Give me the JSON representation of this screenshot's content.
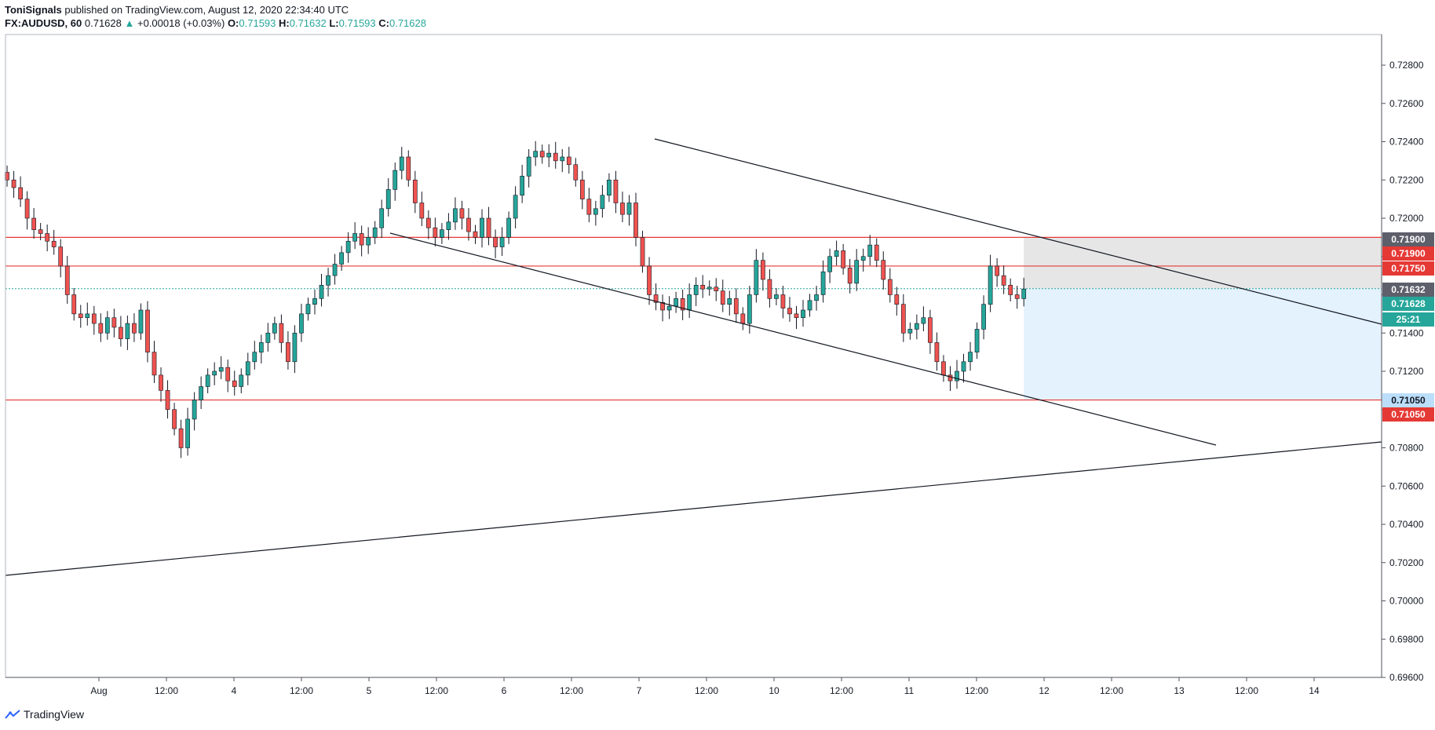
{
  "header": {
    "author": "ToniSignals",
    "published": "published on TradingView.com, August 12, 2020 22:34:40 UTC",
    "symbol": "FX:AUDUSD, 60",
    "last": "0.71628",
    "arrow": "▲",
    "change": "+0.00018 (+0.03%)",
    "o_label": "O:",
    "o_value": "0.71593",
    "h_label": "H:",
    "h_value": "0.71632",
    "l_label": "L:",
    "l_value": "0.71593",
    "c_label": "C:",
    "c_value": "0.71628"
  },
  "footer": {
    "brand": "TradingView",
    "logo_icon": "tradingview-logo-icon"
  },
  "colors": {
    "up": "#26a69a",
    "down": "#ef5350",
    "level": "#e53935",
    "grey": "#5d606b",
    "blue_zone": "#e3f2fd",
    "grey_zone": "#e6e6e6"
  },
  "chart_data": {
    "type": "candlestick",
    "symbol": "FX:AUDUSD",
    "interval": "60",
    "ylim": [
      0.696,
      0.7296
    ],
    "y_ticks": [
      "0.72800",
      "0.72600",
      "0.72400",
      "0.72200",
      "0.72000",
      "0.71800",
      "0.71600",
      "0.71400",
      "0.71200",
      "0.71000",
      "0.70800",
      "0.70600",
      "0.70400",
      "0.70200",
      "0.70000",
      "0.69800",
      "0.69600"
    ],
    "x_ticks": [
      "Aug",
      "12:00",
      "4",
      "12:00",
      "5",
      "12:00",
      "6",
      "12:00",
      "7",
      "12:00",
      "10",
      "12:00",
      "11",
      "12:00",
      "12",
      "12:00",
      "13",
      "12:00",
      "14"
    ],
    "horizontal_levels": [
      0.719,
      0.7175,
      0.7105
    ],
    "current_price_line": 0.71632,
    "badges": [
      {
        "text": "0.71900",
        "kind": "grey"
      },
      {
        "text": "0.71900",
        "kind": "level"
      },
      {
        "text": "0.71750",
        "kind": "level"
      },
      {
        "text": "0.71632",
        "kind": "grey"
      },
      {
        "text": "0.71628",
        "kind": "up"
      },
      {
        "text": "25:21",
        "kind": "up"
      },
      {
        "text": "0.71050",
        "kind": "blue"
      },
      {
        "text": "0.71050",
        "kind": "level"
      }
    ],
    "trendlines": [
      {
        "x0": 0.7,
        "y0": 0.72437,
        "x1": 8.5,
        "y1": 0.7082,
        "label": "descending channel lower"
      },
      {
        "x0": 0.2,
        "y0": 0.72437,
        "x1": 8.5,
        "y1": 0.7146
      },
      {
        "x0": -3.1,
        "y0": 0.7013,
        "x1": 8.5,
        "y1": 0.70825
      }
    ],
    "position_zone": {
      "x_start": 6.85,
      "x_end": 8.5,
      "target": 0.719,
      "entry": 0.71632,
      "stop": 0.7105
    },
    "candles": [
      {
        "x": 0.0,
        "o": 0.722,
        "h": 0.7228,
        "l": 0.7212,
        "c": 0.7216
      },
      {
        "x": 0.2,
        "o": 0.7216,
        "h": 0.722,
        "l": 0.7204,
        "c": 0.721
      },
      {
        "x": 0.4,
        "o": 0.721,
        "h": 0.7215,
        "l": 0.7196,
        "c": 0.72
      },
      {
        "x": 0.6,
        "o": 0.72,
        "h": 0.721,
        "l": 0.7188,
        "c": 0.7194
      },
      {
        "x": 0.8,
        "o": 0.7194,
        "h": 0.7205,
        "l": 0.7185,
        "c": 0.719
      }
    ]
  }
}
